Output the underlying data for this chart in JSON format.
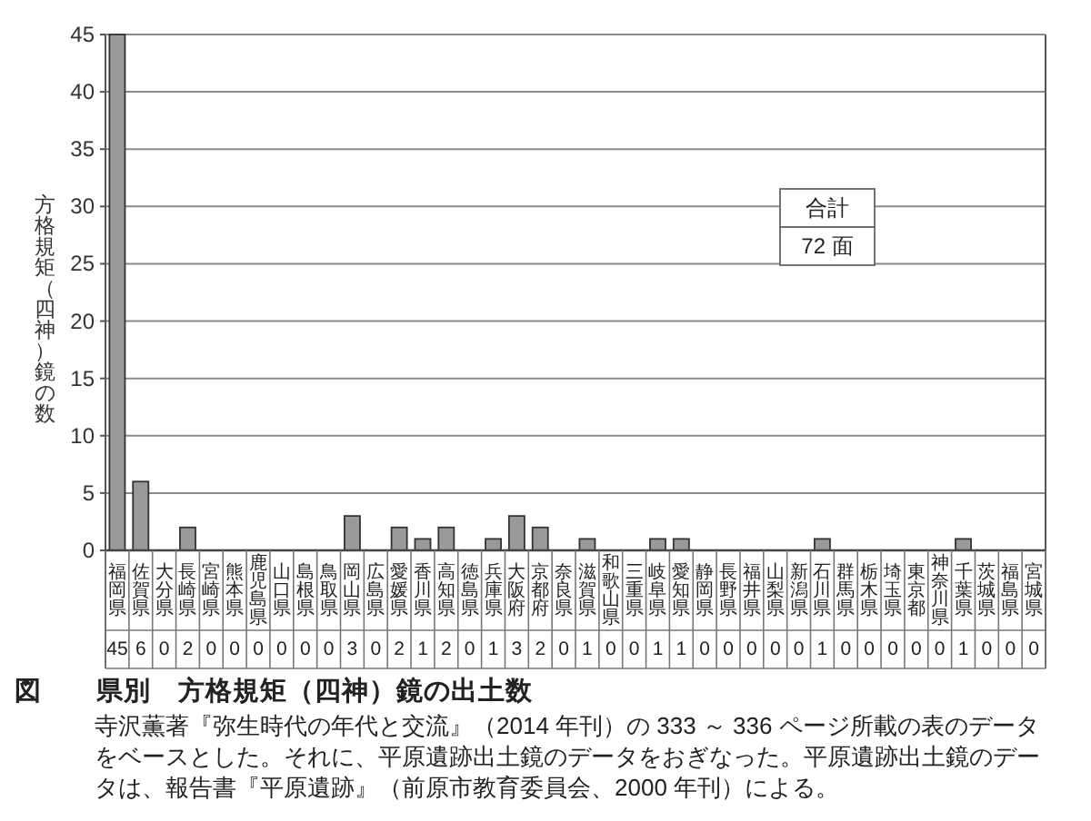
{
  "chart_data": {
    "type": "bar",
    "title": "図　　県別　方格規矩（四神）鏡の出土数",
    "subtitle": "寺沢薫著『弥生時代の年代と交流』（2014 年刊）の 333 ～ 336 ページ所載の表のデータをベースとした。それに、平原遺跡出土鏡のデータをおぎなった。平原遺跡出土鏡のデータは、報告書『平原遺跡』（前原市教育委員会、2000 年刊）による。",
    "ylabel": "方格規矩（四神）鏡の数",
    "categories": [
      "福岡県",
      "佐賀県",
      "大分県",
      "長崎県",
      "宮崎県",
      "熊本県",
      "鹿児島県",
      "山口県",
      "島根県",
      "鳥取県",
      "岡山県",
      "広島県",
      "愛媛県",
      "香川県",
      "高知県",
      "徳島県",
      "兵庫県",
      "大阪府",
      "京都府",
      "奈良県",
      "滋賀県",
      "和歌山県",
      "三重県",
      "岐阜県",
      "愛知県",
      "静岡県",
      "長野県",
      "福井県",
      "山梨県",
      "新潟県",
      "石川県",
      "群馬県",
      "栃木県",
      "埼玉県",
      "東京都",
      "神奈川県",
      "千葉県",
      "茨城県",
      "福島県",
      "宮城県"
    ],
    "values": [
      45,
      6,
      0,
      2,
      0,
      0,
      0,
      0,
      0,
      0,
      3,
      0,
      2,
      1,
      2,
      0,
      1,
      3,
      2,
      0,
      1,
      0,
      0,
      1,
      1,
      0,
      0,
      0,
      0,
      0,
      1,
      0,
      0,
      0,
      0,
      0,
      1,
      0,
      0,
      0
    ],
    "color": "#9a9a9a",
    "ylim": [
      0,
      45
    ],
    "yticks": [
      0,
      5,
      10,
      15,
      20,
      25,
      30,
      35,
      40,
      45
    ],
    "grid": "y",
    "data_labels": true,
    "annotations": [
      "合計",
      "72 面"
    ]
  }
}
